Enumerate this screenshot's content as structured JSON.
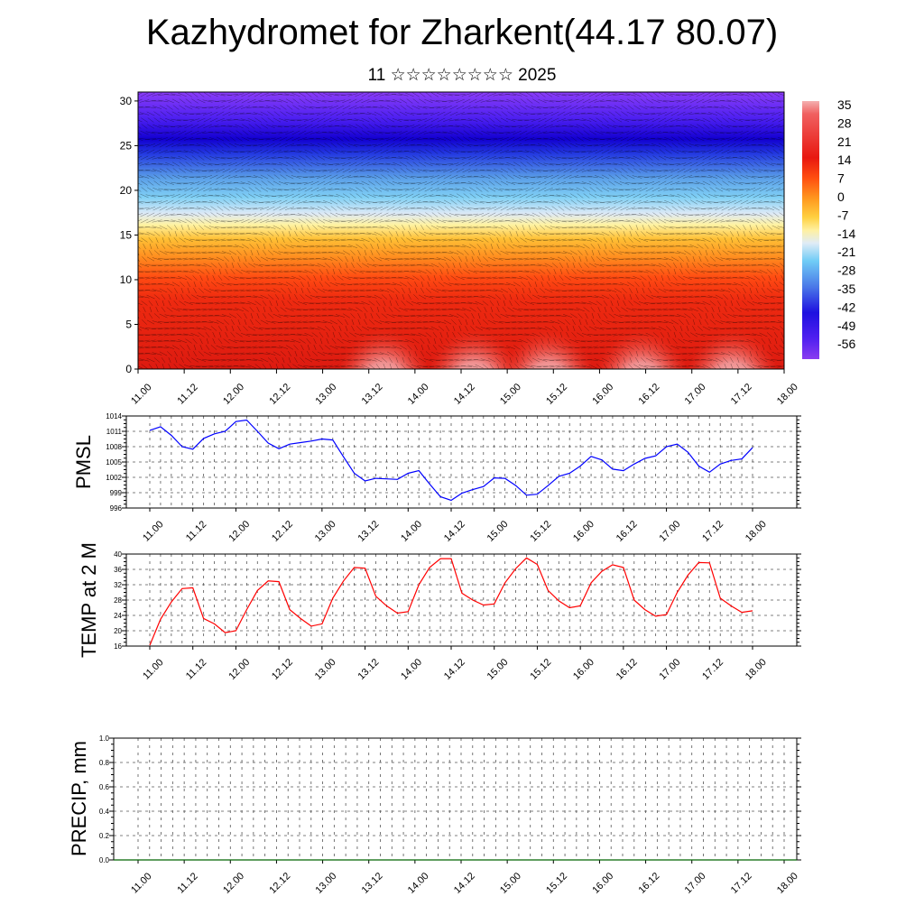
{
  "header": {
    "title": "Kazhydromet for Zharkent(44.17 80.07)",
    "subtitle": "11 ☆☆☆☆☆☆☆☆ 2025"
  },
  "colors": {
    "pmsl_line": "#0000ff",
    "temp_line": "#ff0000",
    "precip_line": "#006400"
  },
  "chart_data": [
    {
      "type": "heatmap",
      "name_ref": "cross-section",
      "x_ticks": [
        "11.00",
        "11.12",
        "12.00",
        "12.12",
        "13.00",
        "13.12",
        "14.00",
        "14.12",
        "15.00",
        "15.12",
        "16.00",
        "16.12",
        "17.00",
        "17.12",
        "18.00"
      ],
      "y_ticks": [
        0,
        5,
        10,
        15,
        20,
        25,
        30
      ],
      "ylim": [
        0,
        31
      ],
      "colorbar_labels": [
        "35",
        "28",
        "21",
        "14",
        "7",
        "0",
        "-7",
        "-14",
        "-21",
        "-28",
        "-35",
        "-42",
        "-49",
        "-56"
      ],
      "colorbar_range": [
        -63,
        42
      ],
      "grid": false
    },
    {
      "type": "line",
      "ylabel": "PMSL",
      "x_ticks": [
        "11.00",
        "11.12",
        "12.00",
        "12.12",
        "13.00",
        "13.12",
        "14.00",
        "14.12",
        "15.00",
        "15.12",
        "16.00",
        "16.12",
        "17.00",
        "17.12",
        "18.00"
      ],
      "y_ticks": [
        996,
        999,
        1002,
        1005,
        1008,
        1011,
        1014
      ],
      "ylim": [
        996,
        1014
      ],
      "x_step_hours": 3,
      "values": [
        1011.2,
        1011.9,
        1010.2,
        1008.0,
        1007.5,
        1009.6,
        1010.5,
        1011.0,
        1012.9,
        1013.2,
        1011.0,
        1008.7,
        1007.6,
        1008.5,
        1008.8,
        1009.1,
        1009.5,
        1009.3,
        1006.0,
        1002.8,
        1001.3,
        1001.8,
        1001.7,
        1001.6,
        1002.8,
        1003.3,
        1000.7,
        998.2,
        997.5,
        998.9,
        999.6,
        1000.2,
        1001.9,
        1001.8,
        1000.4,
        998.5,
        998.7,
        1000.4,
        1002.2,
        1002.8,
        1004.2,
        1006.1,
        1005.4,
        1003.6,
        1003.3,
        1004.6,
        1005.7,
        1006.2,
        1008.0,
        1008.5,
        1006.9,
        1004.2,
        1003.0,
        1004.6,
        1005.3,
        1005.6,
        1007.8
      ],
      "grid": true
    },
    {
      "type": "line",
      "ylabel": "TEMP at 2 M",
      "x_ticks": [
        "11.00",
        "11.12",
        "12.00",
        "12.12",
        "13.00",
        "13.12",
        "14.00",
        "14.12",
        "15.00",
        "15.12",
        "16.00",
        "16.12",
        "17.00",
        "17.12",
        "18.00"
      ],
      "y_ticks": [
        16,
        20,
        24,
        28,
        32,
        36,
        40
      ],
      "ylim": [
        16,
        40
      ],
      "x_step_hours": 3,
      "values": [
        16.2,
        23.0,
        27.5,
        31.0,
        31.2,
        23.2,
        21.8,
        19.5,
        20.0,
        25.5,
        30.5,
        33.0,
        32.8,
        25.5,
        23.2,
        21.2,
        21.8,
        28.5,
        33.0,
        36.5,
        36.3,
        29.0,
        26.5,
        24.6,
        25.0,
        32.0,
        36.5,
        38.8,
        38.8,
        29.8,
        28.0,
        26.7,
        27.0,
        32.5,
        36.2,
        39.0,
        37.3,
        30.5,
        27.8,
        26.0,
        26.5,
        32.5,
        35.5,
        37.2,
        36.5,
        28.0,
        25.5,
        23.8,
        24.2,
        30.0,
        34.5,
        37.8,
        37.7,
        28.5,
        26.5,
        24.8,
        25.2
      ],
      "grid": true
    },
    {
      "type": "line",
      "ylabel": "PRECIP, mm",
      "x_ticks": [
        "11.00",
        "11.12",
        "12.00",
        "12.12",
        "13.00",
        "13.12",
        "14.00",
        "14.12",
        "15.00",
        "15.12",
        "16.00",
        "16.12",
        "17.00",
        "17.12",
        "18.00"
      ],
      "y_ticks": [
        "0.0",
        "0.2",
        "0.4",
        "0.6",
        "0.8",
        "1.0"
      ],
      "ylim": [
        0,
        1
      ],
      "values": [
        0,
        0
      ],
      "grid": true
    }
  ]
}
